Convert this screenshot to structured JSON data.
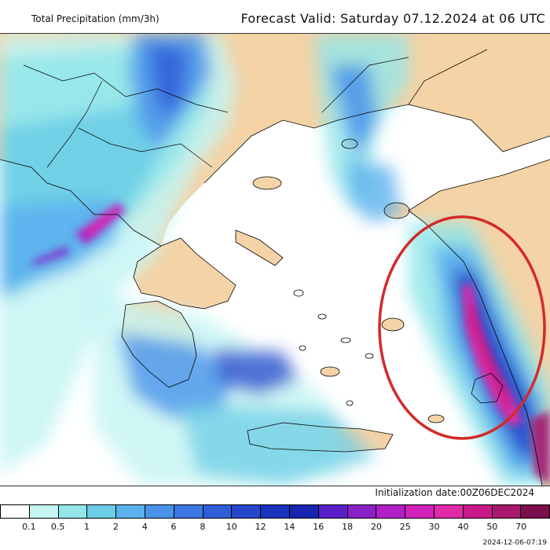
{
  "header": {
    "title": "Total Precipitation (mm/3h)",
    "forecast": "Forecast Valid:  Saturday 07.12.2024 at 06 UTC"
  },
  "footer": {
    "init_date": "Initialization date:00Z06DEC2024",
    "timestamp": "2024-12-06-07:19"
  },
  "legend": {
    "labels": [
      "0.1",
      "0.5",
      "1",
      "2",
      "4",
      "6",
      "8",
      "10",
      "12",
      "14",
      "16",
      "18",
      "20",
      "25",
      "30",
      "40",
      "50",
      "70"
    ],
    "colors": [
      "#ffffff",
      "#c4f5f3",
      "#93e6ea",
      "#6ccde6",
      "#5bb0ee",
      "#4a93ea",
      "#3c78e4",
      "#305ed8",
      "#2647cc",
      "#1c33bf",
      "#1726ae",
      "#5a1fc8",
      "#8a20c8",
      "#b020c4",
      "#d021b8",
      "#e02aa8",
      "#c81a88",
      "#a8186e",
      "#7a0f4c"
    ]
  },
  "map": {
    "land_color": "#f4d3a6",
    "sea_color": "#ffffff",
    "highlight_color": "#d42a2a",
    "highlight": "red ellipse over eastern Aegean / Dodecanese",
    "region": "Greece and Aegean Sea"
  }
}
